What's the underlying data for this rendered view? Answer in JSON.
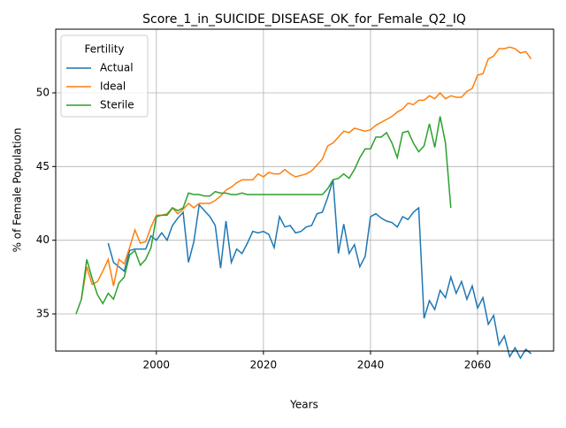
{
  "chart_data": {
    "type": "line",
    "title": "Score_1_in_SUICIDE_DISEASE_OK_for_Female_Q2_IQ",
    "x_label": "Years",
    "y_label": "% of Female Population",
    "legend_title": "Fertility",
    "legend_position": "upper left",
    "grid": true,
    "xlim": [
      1981.2,
      2074.2
    ],
    "xticks": [
      2000,
      2020,
      2040,
      2060
    ],
    "ylim": [
      32.48,
      54.32
    ],
    "yticks": [
      35,
      40,
      45,
      50
    ],
    "x": [
      1985,
      1986,
      1987,
      1988,
      1989,
      1990,
      1991,
      1992,
      1993,
      1994,
      1995,
      1996,
      1997,
      1998,
      1999,
      2000,
      2001,
      2002,
      2003,
      2004,
      2005,
      2006,
      2007,
      2008,
      2009,
      2010,
      2011,
      2012,
      2013,
      2014,
      2015,
      2016,
      2017,
      2018,
      2019,
      2020,
      2021,
      2022,
      2023,
      2024,
      2025,
      2026,
      2027,
      2028,
      2029,
      2030,
      2031,
      2032,
      2033,
      2034,
      2035,
      2036,
      2037,
      2038,
      2039,
      2040,
      2041,
      2042,
      2043,
      2044,
      2045,
      2046,
      2047,
      2048,
      2049,
      2050,
      2051,
      2052,
      2053,
      2054,
      2055,
      2056,
      2057,
      2058,
      2059,
      2060,
      2061,
      2062,
      2063,
      2064,
      2065,
      2066,
      2067,
      2068,
      2069,
      2070
    ],
    "series": [
      {
        "name": "Actual",
        "color": "#1f77b4",
        "values": [
          null,
          null,
          null,
          null,
          null,
          null,
          39.8,
          38.5,
          38.2,
          37.9,
          39.3,
          39.4,
          39.4,
          39.4,
          40.3,
          40.0,
          40.5,
          40.0,
          41.0,
          41.5,
          41.9,
          38.5,
          39.9,
          42.4,
          42.0,
          41.6,
          41.0,
          38.1,
          41.3,
          38.5,
          39.4,
          39.1,
          39.8,
          40.6,
          40.5,
          40.6,
          40.4,
          39.5,
          41.6,
          40.9,
          41.0,
          40.5,
          40.6,
          40.9,
          41.0,
          41.8,
          41.9,
          42.9,
          44.1,
          39.1,
          41.1,
          39.1,
          39.7,
          38.2,
          38.9,
          41.6,
          41.8,
          41.5,
          41.3,
          41.2,
          40.9,
          41.6,
          41.4,
          41.9,
          42.2,
          34.7,
          35.9,
          35.3,
          36.6,
          36.1,
          37.5,
          36.4,
          37.2,
          36.0,
          36.9,
          35.4,
          36.1,
          34.3,
          34.9,
          32.9,
          33.5,
          32.1,
          32.7,
          32.0,
          32.6,
          32.3
        ]
      },
      {
        "name": "Ideal",
        "color": "#ff7f0e",
        "values": [
          null,
          36.0,
          38.2,
          37.0,
          37.2,
          37.9,
          38.7,
          36.9,
          38.7,
          38.4,
          39.5,
          40.7,
          39.8,
          39.9,
          40.9,
          41.7,
          41.7,
          41.8,
          42.2,
          41.8,
          42.1,
          42.5,
          42.2,
          42.5,
          42.5,
          42.5,
          42.7,
          43.0,
          43.4,
          43.6,
          43.9,
          44.1,
          44.1,
          44.1,
          44.5,
          44.3,
          44.6,
          44.5,
          44.5,
          44.8,
          44.5,
          44.3,
          44.4,
          44.5,
          44.7,
          45.1,
          45.5,
          46.4,
          46.6,
          47.0,
          47.4,
          47.3,
          47.6,
          47.5,
          47.4,
          47.5,
          47.8,
          48.0,
          48.2,
          48.4,
          48.7,
          48.9,
          49.3,
          49.2,
          49.5,
          49.5,
          49.8,
          49.6,
          50.0,
          49.6,
          49.8,
          49.7,
          49.7,
          50.1,
          50.3,
          51.2,
          51.3,
          52.3,
          52.5,
          53.0,
          53.0,
          53.1,
          53.0,
          52.7,
          52.8,
          52.3
        ]
      },
      {
        "name": "Sterile",
        "color": "#2ca02c",
        "values": [
          35.0,
          36.0,
          38.7,
          37.4,
          36.3,
          35.7,
          36.4,
          36.0,
          37.1,
          37.5,
          39.0,
          39.3,
          38.3,
          38.7,
          39.5,
          41.6,
          41.7,
          41.7,
          42.2,
          42.0,
          42.2,
          43.2,
          43.1,
          43.1,
          43.0,
          43.0,
          43.3,
          43.2,
          43.2,
          43.1,
          43.1,
          43.2,
          43.1,
          43.1,
          43.1,
          43.1,
          43.1,
          43.1,
          43.1,
          43.1,
          43.1,
          43.1,
          43.1,
          43.1,
          43.1,
          43.1,
          43.1,
          43.5,
          44.1,
          44.2,
          44.5,
          44.2,
          44.8,
          45.6,
          46.2,
          46.2,
          47.0,
          47.0,
          47.3,
          46.6,
          45.6,
          47.3,
          47.4,
          46.6,
          46.0,
          46.4,
          47.9,
          46.3,
          48.4,
          46.6,
          42.2,
          null,
          null,
          null,
          null,
          null,
          null,
          null,
          null,
          null,
          null,
          null,
          null,
          null,
          null,
          null
        ]
      }
    ]
  }
}
